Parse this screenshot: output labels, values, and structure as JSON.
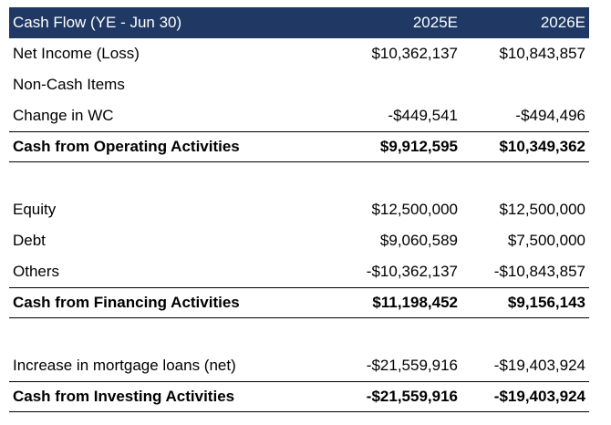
{
  "table": {
    "header": {
      "label": "Cash Flow (YE - Jun 30)",
      "col1": "2025E",
      "col2": "2026E"
    },
    "operating": {
      "net_income": {
        "label": "Net Income (Loss)",
        "v1": "$10,362,137",
        "v2": "$10,843,857"
      },
      "non_cash": {
        "label": "Non-Cash Items",
        "v1": "",
        "v2": ""
      },
      "change_wc": {
        "label": "Change in WC",
        "v1": "-$449,541",
        "v2": "-$494,496"
      },
      "total": {
        "label": "Cash from Operating Activities",
        "v1": "$9,912,595",
        "v2": "$10,349,362"
      }
    },
    "financing": {
      "equity": {
        "label": "Equity",
        "v1": "$12,500,000",
        "v2": "$12,500,000"
      },
      "debt": {
        "label": "Debt",
        "v1": "$9,060,589",
        "v2": "$7,500,000"
      },
      "others": {
        "label": "Others",
        "v1": "-$10,362,137",
        "v2": "-$10,843,857"
      },
      "total": {
        "label": "Cash from Financing Activities",
        "v1": "$11,198,452",
        "v2": "$9,156,143"
      }
    },
    "investing": {
      "mortgage": {
        "label": "Increase in mortgage loans (net)",
        "v1": "-$21,559,916",
        "v2": "-$19,403,924"
      },
      "total": {
        "label": "Cash from Investing Activities",
        "v1": "-$21,559,916",
        "v2": "-$19,403,924"
      }
    }
  },
  "colors": {
    "header_bg": "#1f3864",
    "header_text": "#ffffff"
  }
}
